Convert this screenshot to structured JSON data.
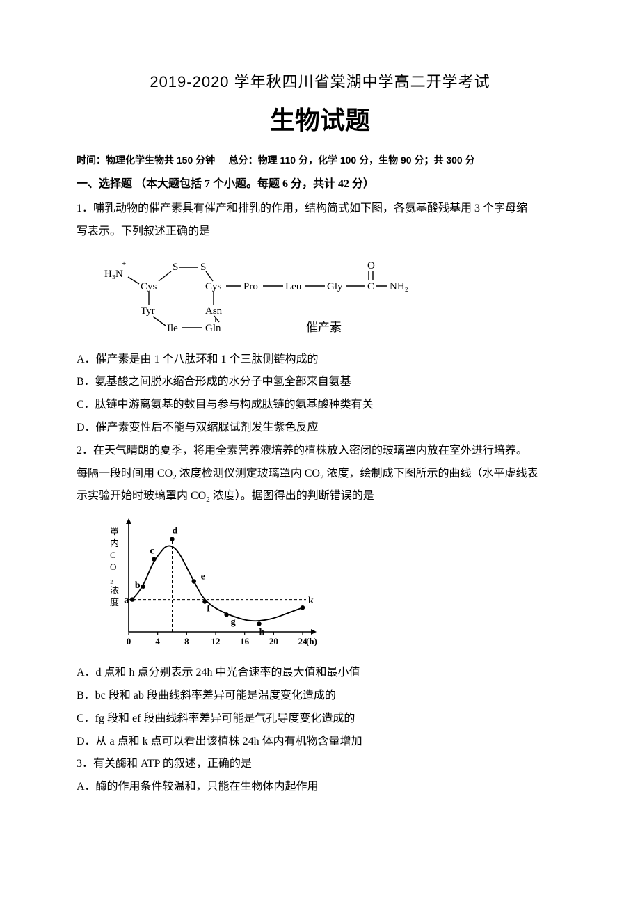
{
  "header": {
    "line1": "2019-2020 学年秋四川省棠湖中学高二开学考试",
    "line2": "生物试题"
  },
  "meta": {
    "time_label": "时间：",
    "time_value": "物理化学生物共 150 分钟",
    "score_label": "总分：",
    "score_value": "物理 110 分，化学 100 分，生物 90 分；共 300 分"
  },
  "section1": {
    "heading": "一、选择题  （本大题包括 7 个小题。每题 6 分，共计 42 分）"
  },
  "q1": {
    "stem_l1": "1．哺乳动物的催产素具有催产和排乳的作用，结构简式如下图，各氨基酸残基用 3 个字母缩",
    "stem_l2": "写表示。下列叙述正确的是",
    "figure": {
      "labels": {
        "h3n": "H₃N",
        "cys1": "Cys",
        "tyr": "Tyr",
        "ile": "Ile",
        "gln": "Gln",
        "asn": "Asn",
        "cys2": "Cys",
        "s1": "S",
        "s2": "S",
        "pro": "Pro",
        "leu": "Leu",
        "gly": "Gly",
        "o": "O",
        "c": "C",
        "nh2": "NH₂",
        "caption": "催产素",
        "plus": "+"
      },
      "colors": {
        "stroke": "#000000",
        "text": "#000000"
      },
      "font_size": 15,
      "line_width": 1.4
    },
    "optA": "A．催产素是由 1 个八肽环和 1 个三肽侧链构成的",
    "optB": "B．氨基酸之间脱水缩合形成的水分子中氢全部来自氨基",
    "optC": "C．肽链中游离氨基的数目与参与构成肽链的氨基酸种类有关",
    "optD": "D．催产素变性后不能与双缩脲试剂发生紫色反应"
  },
  "q2": {
    "stem_l1": "2．在天气晴朗的夏季，将用全素营养液培养的植株放入密闭的玻璃罩内放在室外进行培养。",
    "stem_l2_a": "每隔一段时间用 CO",
    "stem_l2_b": " 浓度检测仪测定玻璃罩内 CO",
    "stem_l2_c": " 浓度，绘制成下图所示的曲线（水平虚线表",
    "stem_l3_a": "示实验开始时玻璃罩内 CO",
    "stem_l3_b": " 浓度）。据图得出的判断错误的是",
    "figure": {
      "type": "line",
      "x_ticks": [
        0,
        4,
        8,
        12,
        16,
        20,
        24
      ],
      "x_unit": "(h)",
      "y_label": "罩内CO₂浓度",
      "points": {
        "a": {
          "x": 0.5,
          "y": 32
        },
        "b": {
          "x": 2.0,
          "y": 45
        },
        "c": {
          "x": 3.5,
          "y": 72
        },
        "d": {
          "x": 6.0,
          "y": 92
        },
        "e": {
          "x": 9.0,
          "y": 50
        },
        "f": {
          "x": 10.5,
          "y": 30
        },
        "g": {
          "x": 13.5,
          "y": 17
        },
        "h": {
          "x": 18.0,
          "y": 8
        },
        "k": {
          "x": 24.0,
          "y": 24
        }
      },
      "dashed_x": 6.0,
      "dashed_y": 32,
      "colors": {
        "axis": "#000000",
        "curve": "#000000",
        "dash": "#000000"
      },
      "line_width_axis": 1.6,
      "line_width_curve": 1.8,
      "marker_radius": 3.2,
      "font_size_axis": 13,
      "font_size_label": 14
    },
    "optA": "A．d 点和 h 点分别表示 24h 中光合速率的最大值和最小值",
    "optB": "B．bc 段和 ab 段曲线斜率差异可能是温度变化造成的",
    "optC": "C．fg 段和 ef 段曲线斜率差异可能是气孔导度变化造成的",
    "optD": "D．从 a 点和 k 点可以看出该植株 24h 体内有机物含量增加"
  },
  "q3": {
    "stem": "3．有关酶和 ATP 的叙述，正确的是",
    "optA": "A．酶的作用条件较温和，只能在生物体内起作用"
  }
}
